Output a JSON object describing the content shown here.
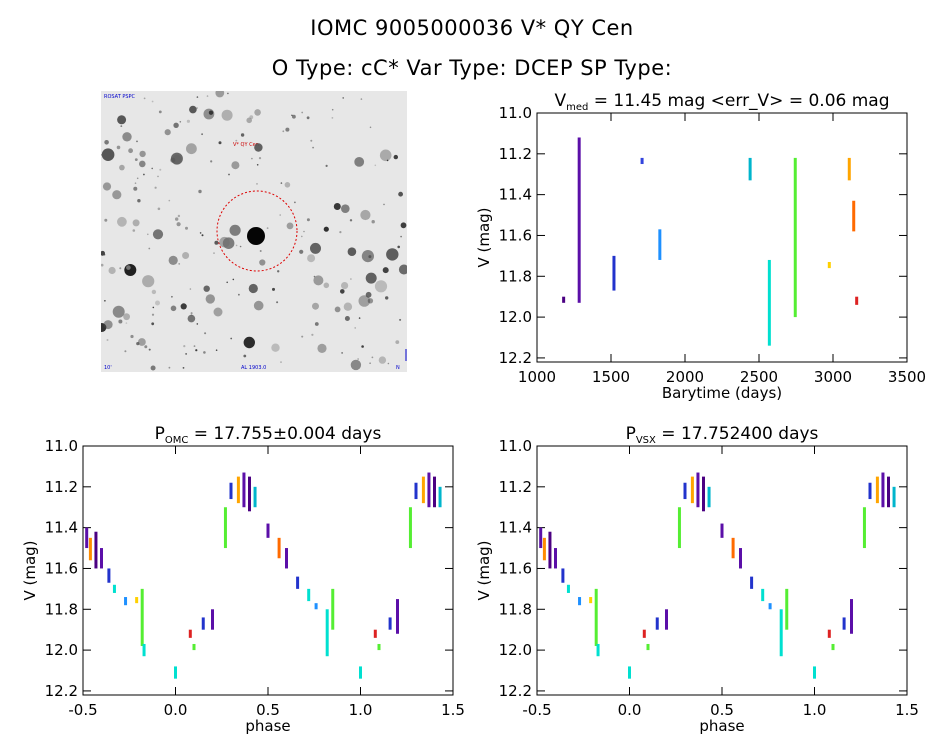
{
  "header": {
    "title_line1": "IOMC 9005000036    V* QY Cen",
    "title_line2": "O Type: cC*   Var Type: DCEP   SP Type:"
  },
  "image_panel": {
    "top_left_label": "ROSAT PSPC",
    "marker_label": "V* QY Cen",
    "bottom_left_label": "10'",
    "bottom_center_label": "AL 1903.0",
    "bottom_right_label": "N"
  },
  "chart_data": [
    {
      "id": "lightcurve",
      "type": "scatter",
      "title": "V_med = 11.45 mag <err_V> = 0.06 mag",
      "title_parts": {
        "pre": "V",
        "sub": "med",
        "post": " = 11.45 mag <err_V> = 0.06 mag"
      },
      "xlabel": "Barytime (days)",
      "ylabel": "V (mag)",
      "xlim": [
        1000,
        3500
      ],
      "ylim": [
        12.22,
        11.0
      ],
      "y_reversed": true,
      "xticks": [
        1000,
        1500,
        2000,
        2500,
        3000,
        3500
      ],
      "yticks": [
        "11.0",
        "11.2",
        "11.4",
        "11.6",
        "11.8",
        "12.0",
        "12.2"
      ],
      "clusters": [
        {
          "x": 1180,
          "y_min": 11.9,
          "y_max": 11.93,
          "color": "#4b0082"
        },
        {
          "x": 1285,
          "y_min": 11.12,
          "y_max": 11.93,
          "color": "#5b0fa8"
        },
        {
          "x": 1520,
          "y_min": 11.7,
          "y_max": 11.87,
          "color": "#2233cc"
        },
        {
          "x": 1710,
          "y_min": 11.22,
          "y_max": 11.25,
          "color": "#3344dd"
        },
        {
          "x": 1830,
          "y_min": 11.57,
          "y_max": 11.72,
          "color": "#1e90ff"
        },
        {
          "x": 2440,
          "y_min": 11.22,
          "y_max": 11.33,
          "color": "#00b5cc"
        },
        {
          "x": 2570,
          "y_min": 11.72,
          "y_max": 12.14,
          "color": "#00e0d0"
        },
        {
          "x": 2745,
          "y_min": 11.22,
          "y_max": 12.0,
          "color": "#55ee33"
        },
        {
          "x": 2975,
          "y_min": 11.73,
          "y_max": 11.76,
          "color": "#ffd000"
        },
        {
          "x": 3110,
          "y_min": 11.22,
          "y_max": 11.33,
          "color": "#ffa500"
        },
        {
          "x": 3140,
          "y_min": 11.43,
          "y_max": 11.58,
          "color": "#ff6a00"
        },
        {
          "x": 3160,
          "y_min": 11.9,
          "y_max": 11.94,
          "color": "#dd2222"
        }
      ]
    },
    {
      "id": "phase_omc",
      "type": "scatter",
      "title": "P_OMC = 17.755±0.004 days",
      "title_parts": {
        "pre": "P",
        "sub": "OMC",
        "post": " = 17.755±0.004 days"
      },
      "xlabel": "phase",
      "ylabel": "V (mag)",
      "xlim": [
        -0.5,
        1.5
      ],
      "ylim": [
        12.22,
        11.0
      ],
      "y_reversed": true,
      "xticks": [
        "-0.5",
        "0.0",
        "0.5",
        "1.0",
        "1.5"
      ],
      "yticks": [
        "11.0",
        "11.2",
        "11.4",
        "11.6",
        "11.8",
        "12.0",
        "12.2"
      ],
      "phase_points": [
        {
          "phase": -0.48,
          "y_min": 11.4,
          "y_max": 11.5,
          "color": "#5b0fa8"
        },
        {
          "phase": -0.46,
          "y_min": 11.45,
          "y_max": 11.56,
          "color": "#ff8c00"
        },
        {
          "phase": -0.43,
          "y_min": 11.42,
          "y_max": 11.6,
          "color": "#4b0082"
        },
        {
          "phase": -0.4,
          "y_min": 11.5,
          "y_max": 11.6,
          "color": "#5b0fa8"
        },
        {
          "phase": -0.36,
          "y_min": 11.6,
          "y_max": 11.67,
          "color": "#2233cc"
        },
        {
          "phase": -0.33,
          "y_min": 11.68,
          "y_max": 11.72,
          "color": "#00e0d0"
        },
        {
          "phase": -0.27,
          "y_min": 11.74,
          "y_max": 11.78,
          "color": "#1e90ff"
        },
        {
          "phase": -0.21,
          "y_min": 11.74,
          "y_max": 11.77,
          "color": "#ffd000"
        },
        {
          "phase": -0.18,
          "y_min": 11.7,
          "y_max": 11.98,
          "color": "#55ee33"
        },
        {
          "phase": -0.17,
          "y_min": 11.97,
          "y_max": 12.03,
          "color": "#00e0d0"
        },
        {
          "phase": 0.0,
          "y_min": 12.08,
          "y_max": 12.14,
          "color": "#00e0d0"
        },
        {
          "phase": 0.08,
          "y_min": 11.9,
          "y_max": 11.94,
          "color": "#dd2222"
        },
        {
          "phase": 0.1,
          "y_min": 11.97,
          "y_max": 12.0,
          "color": "#55ee33"
        },
        {
          "phase": 0.15,
          "y_min": 11.84,
          "y_max": 11.9,
          "color": "#2233cc"
        },
        {
          "phase": 0.2,
          "y_min": 11.8,
          "y_max": 11.9,
          "color": "#5b0fa8"
        },
        {
          "phase": 0.27,
          "y_min": 11.3,
          "y_max": 11.5,
          "color": "#55ee33"
        },
        {
          "phase": 0.3,
          "y_min": 11.18,
          "y_max": 11.26,
          "color": "#2233cc"
        },
        {
          "phase": 0.34,
          "y_min": 11.15,
          "y_max": 11.28,
          "color": "#ffa500"
        },
        {
          "phase": 0.37,
          "y_min": 11.13,
          "y_max": 11.3,
          "color": "#5b0fa8"
        },
        {
          "phase": 0.4,
          "y_min": 11.15,
          "y_max": 11.32,
          "color": "#4b0082"
        },
        {
          "phase": 0.43,
          "y_min": 11.2,
          "y_max": 11.3,
          "color": "#00b5cc"
        },
        {
          "phase": 0.5,
          "y_min": 11.38,
          "y_max": 11.45,
          "color": "#5b0fa8"
        },
        {
          "phase": 0.56,
          "y_min": 11.45,
          "y_max": 11.55,
          "color": "#ff6a00"
        },
        {
          "phase": 0.6,
          "y_min": 11.5,
          "y_max": 11.6,
          "color": "#5b0fa8"
        },
        {
          "phase": 0.66,
          "y_min": 11.64,
          "y_max": 11.7,
          "color": "#2233cc"
        },
        {
          "phase": 0.72,
          "y_min": 11.7,
          "y_max": 11.76,
          "color": "#00e0d0"
        },
        {
          "phase": 0.76,
          "y_min": 11.77,
          "y_max": 11.8,
          "color": "#1e90ff"
        },
        {
          "phase": 0.82,
          "y_min": 11.8,
          "y_max": 12.03,
          "color": "#00e0d0"
        },
        {
          "phase": 0.85,
          "y_min": 11.7,
          "y_max": 11.9,
          "color": "#55ee33"
        },
        {
          "phase": 1.0,
          "y_min": 12.08,
          "y_max": 12.14,
          "color": "#00e0d0"
        },
        {
          "phase": 1.08,
          "y_min": 11.9,
          "y_max": 11.94,
          "color": "#dd2222"
        },
        {
          "phase": 1.1,
          "y_min": 11.97,
          "y_max": 12.0,
          "color": "#55ee33"
        },
        {
          "phase": 1.16,
          "y_min": 11.84,
          "y_max": 11.9,
          "color": "#2233cc"
        },
        {
          "phase": 1.2,
          "y_min": 11.75,
          "y_max": 11.92,
          "color": "#5b0fa8"
        },
        {
          "phase": 1.27,
          "y_min": 11.3,
          "y_max": 11.5,
          "color": "#55ee33"
        },
        {
          "phase": 1.3,
          "y_min": 11.18,
          "y_max": 11.26,
          "color": "#2233cc"
        },
        {
          "phase": 1.34,
          "y_min": 11.15,
          "y_max": 11.28,
          "color": "#ffa500"
        },
        {
          "phase": 1.37,
          "y_min": 11.13,
          "y_max": 11.3,
          "color": "#5b0fa8"
        },
        {
          "phase": 1.4,
          "y_min": 11.15,
          "y_max": 11.3,
          "color": "#4b0082"
        },
        {
          "phase": 1.43,
          "y_min": 11.2,
          "y_max": 11.3,
          "color": "#00b5cc"
        }
      ]
    },
    {
      "id": "phase_vsx",
      "type": "scatter",
      "title": "P_VSX = 17.752400 days",
      "title_parts": {
        "pre": "P",
        "sub": "VSX",
        "post": " = 17.752400 days"
      },
      "xlabel": "phase",
      "ylabel": "V (mag)",
      "xlim": [
        -0.5,
        1.5
      ],
      "ylim": [
        12.22,
        11.0
      ],
      "y_reversed": true,
      "xticks": [
        "-0.5",
        "0.0",
        "0.5",
        "1.0",
        "1.5"
      ],
      "yticks": [
        "11.0",
        "11.2",
        "11.4",
        "11.6",
        "11.8",
        "12.0",
        "12.2"
      ],
      "phase_points_from": "phase_omc"
    }
  ]
}
